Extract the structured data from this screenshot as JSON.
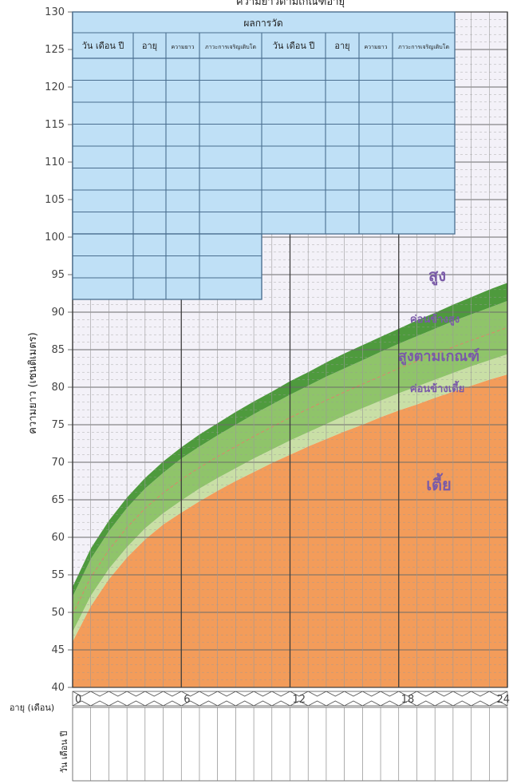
{
  "chart_data": {
    "type": "area",
    "title": "ความยาวตามเกณฑ์อายุ",
    "ylabel": "ความยาว (เซนติเมตร)",
    "xlabel": "อายุ (เดือน)",
    "date_row_label": "วัน เดือน ปี",
    "ylim": [
      40,
      130
    ],
    "xlim": [
      0,
      24
    ],
    "y_ticks": [
      40,
      45,
      50,
      55,
      60,
      65,
      70,
      75,
      80,
      85,
      90,
      95,
      100,
      105,
      110,
      115,
      120,
      125,
      130
    ],
    "x_ticks": [
      0,
      6,
      12,
      18,
      24
    ],
    "grid": true,
    "curves_x": [
      0,
      1,
      2,
      3,
      4,
      5,
      6,
      7,
      8,
      9,
      10,
      11,
      12,
      13,
      14,
      15,
      16,
      17,
      18,
      19,
      20,
      21,
      22,
      23,
      24
    ],
    "series": [
      {
        "name": "เตี้ย",
        "values": [
          46.1,
          50.8,
          54.4,
          57.3,
          59.7,
          61.7,
          63.3,
          64.8,
          66.2,
          67.5,
          68.7,
          69.9,
          71.0,
          72.1,
          73.1,
          74.1,
          75.0,
          76.0,
          76.9,
          77.7,
          78.6,
          79.4,
          80.2,
          81.0,
          81.7
        ]
      },
      {
        "name": "ค่อนข้างเตี้ย",
        "values": [
          47.4,
          52.2,
          55.8,
          58.7,
          61.2,
          63.2,
          64.9,
          66.5,
          67.9,
          69.2,
          70.5,
          71.7,
          72.9,
          74.0,
          75.1,
          76.2,
          77.2,
          78.2,
          79.2,
          80.1,
          81.0,
          81.9,
          82.8,
          83.6,
          84.4
        ]
      },
      {
        "name": "สูงตามเกณฑ์",
        "values": [
          52.1,
          57.1,
          60.8,
          63.9,
          66.5,
          68.6,
          70.5,
          72.1,
          73.6,
          75.0,
          76.4,
          77.7,
          79.0,
          80.2,
          81.4,
          82.5,
          83.6,
          84.7,
          85.8,
          86.8,
          87.8,
          88.8,
          89.7,
          90.6,
          91.5
        ]
      },
      {
        "name": "ค่อนข้างสูง",
        "values": [
          53.4,
          58.5,
          62.2,
          65.3,
          67.9,
          70.1,
          72.0,
          73.7,
          75.2,
          76.7,
          78.1,
          79.4,
          80.8,
          82.0,
          83.3,
          84.5,
          85.6,
          86.7,
          87.8,
          88.9,
          89.9,
          91.0,
          92.0,
          93.0,
          93.9
        ]
      },
      {
        "name": "สูง",
        "values": []
      }
    ],
    "zone_labels": [
      "สูง",
      "ค่อนข้างสูง",
      "สูงตามเกณฑ์",
      "ค่อนข้างเตี้ย",
      "เตี้ย"
    ],
    "colors": {
      "short": "#f39c5a",
      "below": "#c9dfa6",
      "normal": "#8fc46a",
      "above": "#4e9a3d",
      "tall": "#f3f1f8",
      "gridMajor": "#6b6b6b",
      "gridMinor": "#9a9a9a",
      "table": "#bfe0f6",
      "tableLine": "#4a6e8f"
    }
  },
  "record_table": {
    "title": "ผลการวัด",
    "columns": [
      "วัน เดือน ปี",
      "อายุ",
      "ความยาว",
      "ภาวะการเจริญเติบโต",
      "วัน เดือน ปี",
      "อายุ",
      "ความยาว",
      "ภาวะการเจริญเติบโต"
    ]
  }
}
